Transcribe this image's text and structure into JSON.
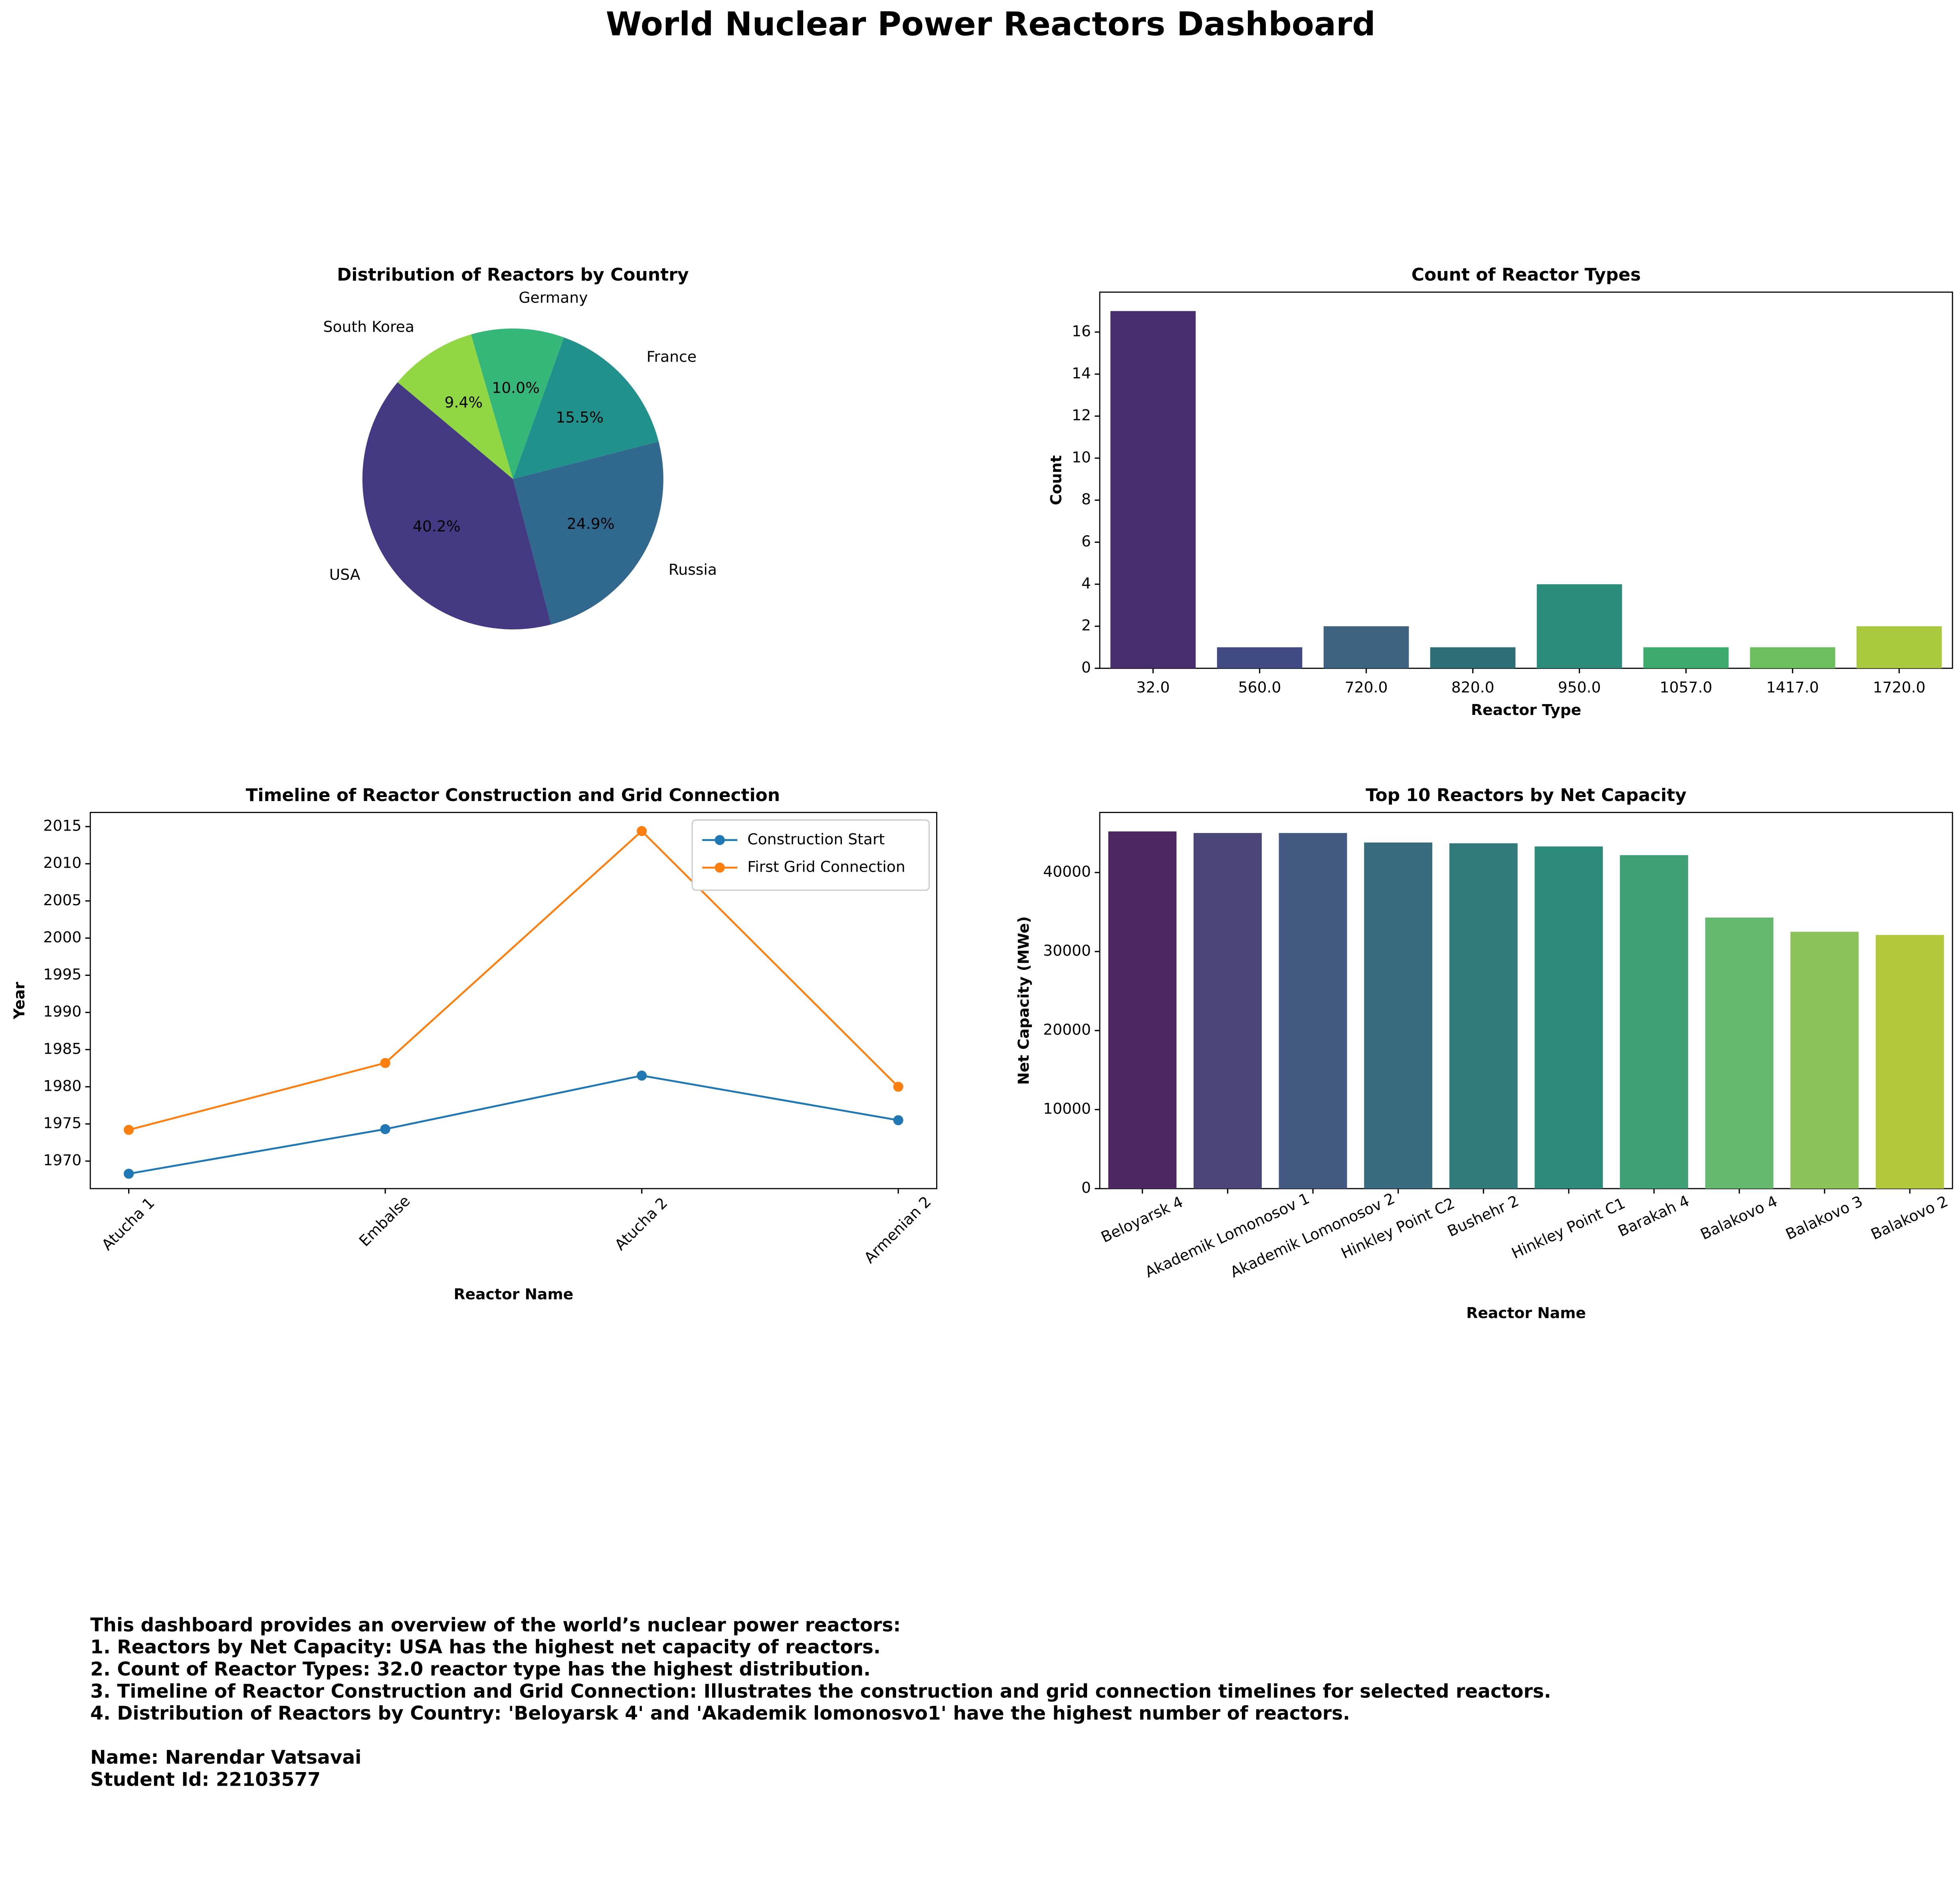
{
  "title": "World Nuclear Power Reactors Dashboard",
  "description": [
    "This dashboard provides an overview of the world’s nuclear power reactors:",
    "1. Reactors by Net Capacity: USA has the highest net capacity of reactors.",
    "2. Count of Reactor Types: 32.0 reactor type has the highest distribution.",
    "3. Timeline of Reactor Construction and Grid Connection: Illustrates the construction and grid connection timelines for selected reactors.",
    "4. Distribution of Reactors by Country: 'Beloyarsk 4' and 'Akademik lomonosvo1' have the highest number of reactors."
  ],
  "footer": [
    "Name: Narendar Vatsavai",
    "Student Id: 22103577"
  ],
  "chart_data": [
    {
      "type": "pie",
      "title": "Distribution of Reactors by Country",
      "categories": [
        "USA",
        "Russia",
        "France",
        "Germany",
        "South Korea"
      ],
      "values": [
        40.2,
        24.9,
        15.5,
        10.0,
        9.4
      ],
      "value_labels": [
        "40.2%",
        "24.9%",
        "15.5%",
        "10.0%",
        "9.4%"
      ],
      "colors": [
        "#443983",
        "#31688e",
        "#21918c",
        "#35b779",
        "#90d743"
      ]
    },
    {
      "type": "bar",
      "title": "Count of Reactor Types",
      "x_label": "Reactor Type",
      "y_label": "Count",
      "categories": [
        "32.0",
        "560.0",
        "720.0",
        "820.0",
        "950.0",
        "1057.0",
        "1417.0",
        "1720.0"
      ],
      "values": [
        17,
        1,
        2,
        1,
        4,
        1,
        1,
        2
      ],
      "colors": [
        "#472c6e",
        "#414a83",
        "#3d6381",
        "#2e6f77",
        "#2b8c7b",
        "#3daa6e",
        "#6cbf5c",
        "#a8c83e"
      ],
      "ylim": [
        0,
        17.9
      ],
      "yticks": [
        0,
        2,
        4,
        6,
        8,
        10,
        12,
        14,
        16
      ]
    },
    {
      "type": "line",
      "title": "Timeline of Reactor Construction and Grid Connection",
      "x_label": "Reactor Name",
      "y_label": "Year",
      "categories": [
        "Atucha 1",
        "Embalse",
        "Atucha 2",
        "Armenian 2"
      ],
      "series": [
        {
          "name": "Construction Start",
          "color": "#1f77b4",
          "values": [
            1968.3,
            1974.3,
            1981.5,
            1975.5
          ]
        },
        {
          "name": "First Grid Connection",
          "color": "#ff7f0e",
          "values": [
            1974.2,
            1983.2,
            2014.4,
            1980.0
          ]
        }
      ],
      "ylim": [
        1966.3,
        2016.9
      ],
      "yticks": [
        1970,
        1975,
        1980,
        1985,
        1990,
        1995,
        2000,
        2005,
        2010,
        2015
      ],
      "legend": "upper right"
    },
    {
      "type": "bar",
      "title": "Top 10 Reactors by Net Capacity",
      "x_label": "Reactor Name",
      "y_label": "Net Capacity (MWe)",
      "categories": [
        "Beloyarsk 4",
        "Akademik Lomonosov 1",
        "Akademik Lomonosov 2",
        "Hinkley Point C2",
        "Bushehr 2",
        "Hinkley Point C1",
        "Barakah 4",
        "Balakovo 4",
        "Balakovo 3",
        "Balakovo 2"
      ],
      "values": [
        45200,
        45000,
        45000,
        43800,
        43700,
        43300,
        42200,
        34300,
        32500,
        32100
      ],
      "colors": [
        "#4d2762",
        "#4a467a",
        "#425a82",
        "#386b7d",
        "#307a7c",
        "#2d8b7c",
        "#3da175",
        "#63b86d",
        "#8bc35a",
        "#b3c93a"
      ],
      "ylim": [
        0,
        47600
      ],
      "yticks": [
        0,
        10000,
        20000,
        30000,
        40000
      ]
    }
  ]
}
